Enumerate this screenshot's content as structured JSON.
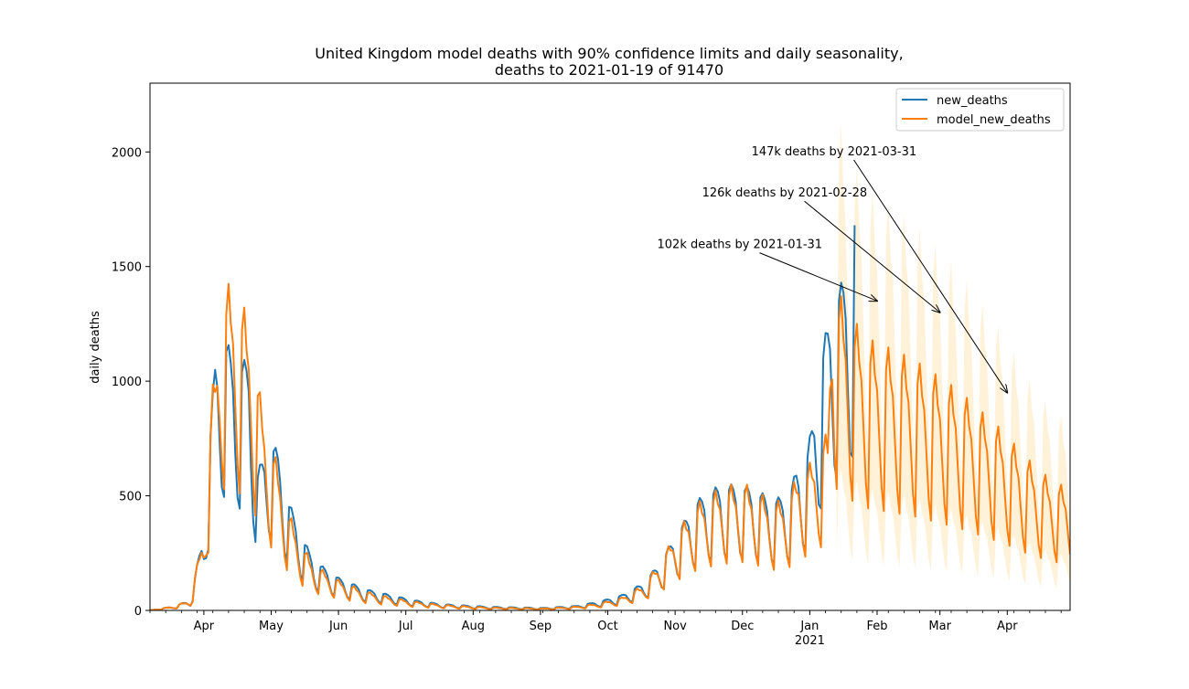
{
  "chart_data": {
    "type": "line",
    "title_line1": "United Kingdom model deaths with 90% confidence limits and daily seasonality,",
    "title_line2": "deaths to 2021-01-19 of 91470",
    "ylabel": "daily deaths",
    "xlabel": "",
    "ylim": [
      0,
      2300
    ],
    "x_range_days": [
      0,
      410
    ],
    "x_origin_date": "2020-03-01",
    "yticks": [
      {
        "value": 0,
        "label": "0"
      },
      {
        "value": 500,
        "label": "500"
      },
      {
        "value": 1000,
        "label": "1000"
      },
      {
        "value": 1500,
        "label": "1500"
      },
      {
        "value": 2000,
        "label": "2000"
      }
    ],
    "xticks": [
      {
        "day": 24,
        "label": "Apr"
      },
      {
        "day": 54,
        "label": "May"
      },
      {
        "day": 84,
        "label": "Jun"
      },
      {
        "day": 114,
        "label": "Jul"
      },
      {
        "day": 144,
        "label": "Aug"
      },
      {
        "day": 174,
        "label": "Sep"
      },
      {
        "day": 204,
        "label": "Oct"
      },
      {
        "day": 234,
        "label": "Nov"
      },
      {
        "day": 264,
        "label": "Dec"
      },
      {
        "day": 294,
        "label": "Jan"
      },
      {
        "day": 324,
        "label": "Feb"
      },
      {
        "day": 352,
        "label": "Mar"
      },
      {
        "day": 382,
        "label": "Apr"
      }
    ],
    "year_label": {
      "day": 294,
      "label": "2021"
    },
    "legend": {
      "placement": "top-right",
      "entries": [
        {
          "name": "new_deaths",
          "color": "#1f77b4"
        },
        {
          "name": "model_new_deaths",
          "color": "#ff7f0e"
        }
      ]
    },
    "colors": {
      "actual": "#1f77b4",
      "model": "#ff7f0e",
      "band": "#ffa500"
    },
    "actual_last_day": 314,
    "actual_anchors": [
      [
        0,
        0
      ],
      [
        10,
        15
      ],
      [
        18,
        40
      ],
      [
        24,
        320
      ],
      [
        29,
        1000
      ],
      [
        33,
        1100
      ],
      [
        38,
        980
      ],
      [
        44,
        1000
      ],
      [
        48,
        550
      ],
      [
        53,
        690
      ],
      [
        57,
        630
      ],
      [
        62,
        430
      ],
      [
        68,
        290
      ],
      [
        73,
        200
      ],
      [
        84,
        130
      ],
      [
        96,
        85
      ],
      [
        108,
        60
      ],
      [
        118,
        40
      ],
      [
        130,
        25
      ],
      [
        150,
        15
      ],
      [
        175,
        10
      ],
      [
        190,
        18
      ],
      [
        200,
        35
      ],
      [
        210,
        60
      ],
      [
        220,
        110
      ],
      [
        228,
        200
      ],
      [
        234,
        300
      ],
      [
        244,
        440
      ],
      [
        254,
        500
      ],
      [
        264,
        500
      ],
      [
        270,
        480
      ],
      [
        278,
        440
      ],
      [
        285,
        470
      ],
      [
        288,
        560
      ],
      [
        292,
        580
      ],
      [
        296,
        800
      ],
      [
        300,
        1050
      ],
      [
        304,
        1250
      ],
      [
        308,
        1300
      ],
      [
        312,
        1380
      ],
      [
        314,
        1600
      ]
    ],
    "model_anchors": [
      [
        0,
        0
      ],
      [
        10,
        15
      ],
      [
        18,
        40
      ],
      [
        24,
        320
      ],
      [
        28,
        880
      ],
      [
        32,
        1250
      ],
      [
        36,
        1280
      ],
      [
        41,
        1200
      ],
      [
        45,
        1120
      ],
      [
        49,
        850
      ],
      [
        53,
        680
      ],
      [
        57,
        570
      ],
      [
        62,
        380
      ],
      [
        68,
        255
      ],
      [
        73,
        180
      ],
      [
        84,
        120
      ],
      [
        96,
        75
      ],
      [
        108,
        50
      ],
      [
        118,
        35
      ],
      [
        130,
        22
      ],
      [
        150,
        12
      ],
      [
        175,
        8
      ],
      [
        190,
        15
      ],
      [
        200,
        28
      ],
      [
        210,
        50
      ],
      [
        220,
        100
      ],
      [
        228,
        200
      ],
      [
        234,
        300
      ],
      [
        244,
        420
      ],
      [
        254,
        480
      ],
      [
        264,
        500
      ],
      [
        270,
        470
      ],
      [
        278,
        420
      ],
      [
        285,
        450
      ],
      [
        289,
        550
      ],
      [
        293,
        560
      ],
      [
        298,
        640
      ],
      [
        302,
        700
      ],
      [
        304,
        1400
      ],
      [
        306,
        1260
      ],
      [
        312,
        1150
      ],
      [
        320,
        1060
      ],
      [
        330,
        1020
      ],
      [
        340,
        980
      ],
      [
        350,
        920
      ],
      [
        360,
        860
      ],
      [
        370,
        780
      ],
      [
        380,
        700
      ],
      [
        390,
        600
      ],
      [
        400,
        520
      ],
      [
        410,
        470
      ]
    ],
    "model_weekly_factors": [
      1.12,
      0.98,
      0.92,
      0.72,
      0.52,
      0.42,
      1.02
    ],
    "actual_weekly_factors": [
      1.1,
      1.05,
      0.95,
      0.7,
      0.5,
      0.45,
      1.05
    ],
    "band_start_day": 306,
    "band_upper_scale": 1.55,
    "band_lower_scale": 0.45,
    "annotations": [
      {
        "text": "102k deaths by 2021-01-31",
        "text_day": 226,
        "text_value": 1580,
        "target_day": 324,
        "target_value": 1350
      },
      {
        "text": "126k deaths by 2021-02-28",
        "text_day": 246,
        "text_value": 1805,
        "target_day": 352,
        "target_value": 1300
      },
      {
        "text": "147k deaths by 2021-03-31",
        "text_day": 268,
        "text_value": 1985,
        "target_day": 382,
        "target_value": 950
      }
    ]
  }
}
